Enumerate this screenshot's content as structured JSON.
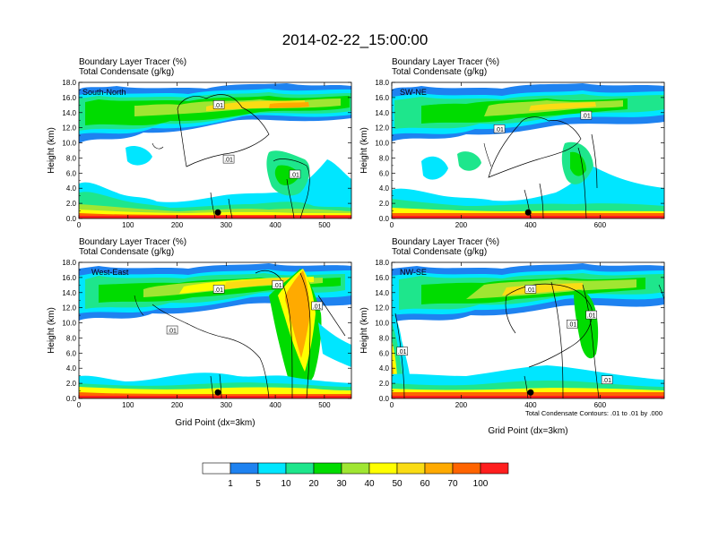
{
  "figure": {
    "title": "2014-02-22_15:00:00",
    "panel_title_line1": "Boundary Layer Tracer    (%)",
    "panel_title_line2": "Total Condensate    (g/kg)",
    "contour_note": "Total Condensate Contours: .01 to .01 by .000",
    "colorbar": {
      "colors": [
        "#ffffff",
        "#1e82f0",
        "#00e6ff",
        "#1ee68c",
        "#00dc00",
        "#a0e632",
        "#ffff00",
        "#fadc14",
        "#ffaa00",
        "#ff6400",
        "#ff1e1e"
      ],
      "ticks": [
        "1",
        "5",
        "10",
        "20",
        "30",
        "40",
        "50",
        "60",
        "70",
        "100"
      ]
    }
  },
  "chart_data": [
    {
      "type": "heatmap",
      "label": "South-North",
      "title": "Boundary Layer Tracer    (%)",
      "subtitle": "Total Condensate    (g/kg)",
      "ylabel": "Height (km)",
      "xlabel": "",
      "xlim": [
        0,
        555
      ],
      "ylim": [
        0,
        18
      ],
      "xticks": [
        "0",
        "100",
        "200",
        "300",
        "400",
        "500"
      ],
      "yticks": [
        "0.0",
        "2.0",
        "4.0",
        "6.0",
        "8.0",
        "10.0",
        "12.0",
        "14.0",
        "16.0",
        "18.0"
      ],
      "contour_labels": [
        {
          "text": ".01",
          "x": 285,
          "y": 15.0
        },
        {
          "text": ".01",
          "x": 305,
          "y": 7.8
        },
        {
          "text": ".01",
          "x": 440,
          "y": 5.8
        }
      ],
      "marker": {
        "x": 283,
        "y": 0.8
      }
    },
    {
      "type": "heatmap",
      "label": "SW-NE",
      "title": "Boundary Layer Tracer    (%)",
      "subtitle": "Total Condensate    (g/kg)",
      "ylabel": "Height (km)",
      "xlabel": "",
      "xlim": [
        0,
        785
      ],
      "ylim": [
        0,
        18
      ],
      "xticks": [
        "0",
        "200",
        "400",
        "600"
      ],
      "yticks": [
        "0.0",
        "2.0",
        "4.0",
        "6.0",
        "8.0",
        "10.0",
        "12.0",
        "14.0",
        "16.0",
        "18.0"
      ],
      "contour_labels": [
        {
          "text": ".01",
          "x": 560,
          "y": 13.6
        },
        {
          "text": ".01",
          "x": 310,
          "y": 11.8
        }
      ],
      "marker": {
        "x": 393,
        "y": 0.8
      }
    },
    {
      "type": "heatmap",
      "label": "West-East",
      "title": "Boundary Layer Tracer    (%)",
      "subtitle": "Total Condensate    (g/kg)",
      "ylabel": "Height (km)",
      "xlabel": "Grid Point (dx=3km)",
      "xlim": [
        0,
        555
      ],
      "ylim": [
        0,
        18
      ],
      "xticks": [
        "0",
        "100",
        "200",
        "300",
        "400",
        "500"
      ],
      "yticks": [
        "0.0",
        "2.0",
        "4.0",
        "6.0",
        "8.0",
        "10.0",
        "12.0",
        "14.0",
        "16.0",
        "18.0"
      ],
      "contour_labels": [
        {
          "text": ".01",
          "x": 285,
          "y": 14.4
        },
        {
          "text": ".01",
          "x": 405,
          "y": 15.0
        },
        {
          "text": ".01",
          "x": 485,
          "y": 12.2
        },
        {
          "text": ".01",
          "x": 190,
          "y": 9.0
        }
      ],
      "marker": {
        "x": 283,
        "y": 0.8
      }
    },
    {
      "type": "heatmap",
      "label": "NW-SE",
      "title": "Boundary Layer Tracer    (%)",
      "subtitle": "Total Condensate    (g/kg)",
      "ylabel": "Height (km)",
      "xlabel": "Grid Point (dx=3km)",
      "xlim": [
        0,
        785
      ],
      "ylim": [
        0,
        18
      ],
      "xticks": [
        "0",
        "200",
        "400",
        "600"
      ],
      "yticks": [
        "0.0",
        "2.0",
        "4.0",
        "6.0",
        "8.0",
        "10.0",
        "12.0",
        "14.0",
        "16.0",
        "18.0"
      ],
      "contour_labels": [
        {
          "text": ".01",
          "x": 400,
          "y": 14.4
        },
        {
          "text": ".01",
          "x": 575,
          "y": 11.0
        },
        {
          "text": ".01",
          "x": 520,
          "y": 9.8
        },
        {
          "text": ".01",
          "x": 30,
          "y": 6.2
        },
        {
          "text": ".01",
          "x": 620,
          "y": 2.4
        }
      ],
      "marker": {
        "x": 400,
        "y": 0.8
      }
    }
  ]
}
